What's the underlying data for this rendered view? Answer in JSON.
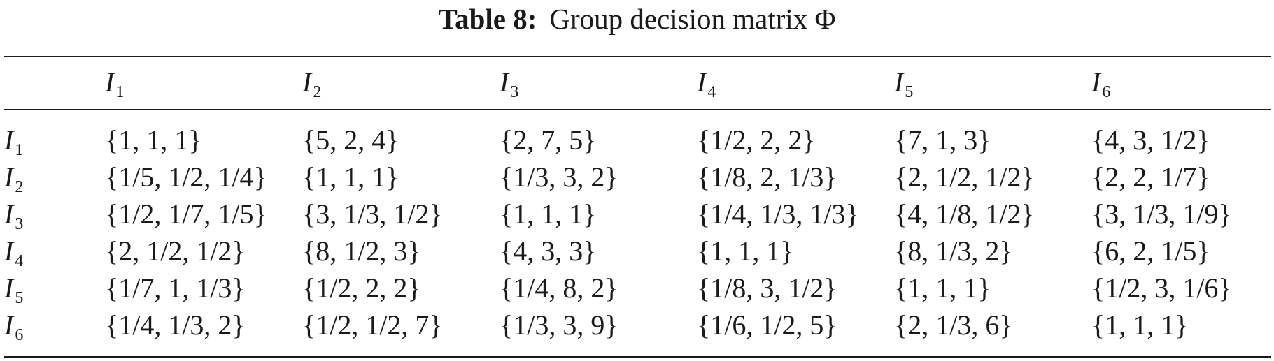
{
  "caption": {
    "label": "Table 8:",
    "text": "Group decision matrix Φ"
  },
  "table": {
    "columns": [
      {
        "var": "I",
        "sub": "1"
      },
      {
        "var": "I",
        "sub": "2"
      },
      {
        "var": "I",
        "sub": "3"
      },
      {
        "var": "I",
        "sub": "4"
      },
      {
        "var": "I",
        "sub": "5"
      },
      {
        "var": "I",
        "sub": "6"
      }
    ],
    "rows": [
      {
        "var": "I",
        "sub": "1",
        "cells": [
          "{1, 1, 1}",
          "{5, 2, 4}",
          "{2, 7, 5}",
          "{1/2, 2, 2}",
          "{7, 1, 3}",
          "{4, 3, 1/2}"
        ]
      },
      {
        "var": "I",
        "sub": "2",
        "cells": [
          "{1/5, 1/2, 1/4}",
          "{1, 1, 1}",
          "{1/3, 3, 2}",
          "{1/8, 2, 1/3}",
          "{2, 1/2, 1/2}",
          "{2, 2, 1/7}"
        ]
      },
      {
        "var": "I",
        "sub": "3",
        "cells": [
          "{1/2, 1/7, 1/5}",
          "{3, 1/3, 1/2}",
          "{1, 1, 1}",
          "{1/4, 1/3, 1/3}",
          "{4, 1/8, 1/2}",
          "{3, 1/3, 1/9}"
        ]
      },
      {
        "var": "I",
        "sub": "4",
        "cells": [
          "{2, 1/2, 1/2}",
          "{8, 1/2, 3}",
          "{4, 3, 3}",
          "{1, 1, 1}",
          "{8, 1/3, 2}",
          "{6, 2, 1/5}"
        ]
      },
      {
        "var": "I",
        "sub": "5",
        "cells": [
          "{1/7, 1, 1/3}",
          "{1/2, 2, 2}",
          "{1/4, 8, 2}",
          "{1/8, 3, 1/2}",
          "{1, 1, 1}",
          "{1/2, 3, 1/6}"
        ]
      },
      {
        "var": "I",
        "sub": "6",
        "cells": [
          "{1/4, 1/3, 2}",
          "{1/2, 1/2, 7}",
          "{1/3, 3, 9}",
          "{1/6, 1/2, 5}",
          "{2, 1/3, 6}",
          "{1, 1, 1}"
        ]
      }
    ]
  }
}
